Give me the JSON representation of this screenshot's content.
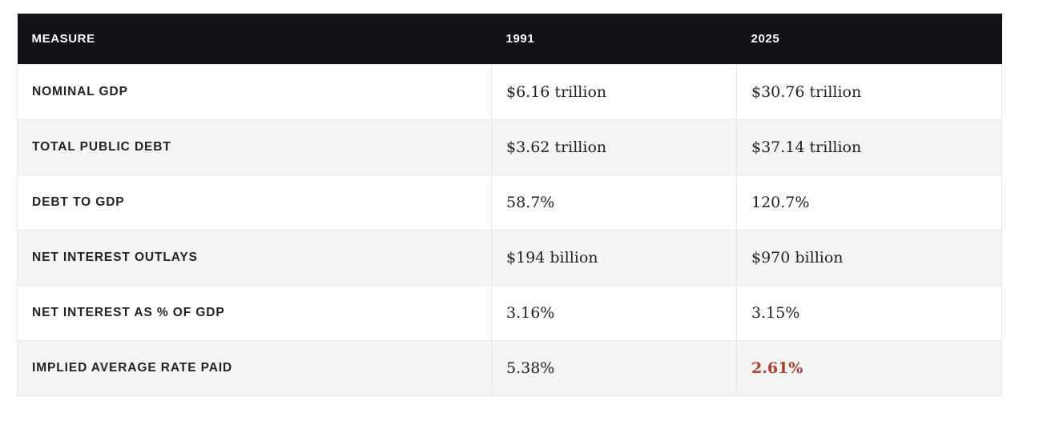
{
  "table": {
    "headers": [
      "MEASURE",
      "1991",
      "2025"
    ],
    "rows": [
      {
        "measure": "NOMINAL GDP",
        "y1991": "$6.16 trillion",
        "y2025": "$30.76 trillion"
      },
      {
        "measure": "TOTAL PUBLIC DEBT",
        "y1991": "$3.62 trillion",
        "y2025": "$37.14 trillion"
      },
      {
        "measure": "DEBT TO GDP",
        "y1991": "58.7%",
        "y2025": "120.7%"
      },
      {
        "measure": "NET INTEREST OUTLAYS",
        "y1991": "$194 billion",
        "y2025": "$970 billion"
      },
      {
        "measure": "NET INTEREST AS % OF GDP",
        "y1991": "3.16%",
        "y2025": "3.15%"
      },
      {
        "measure": "IMPLIED AVERAGE RATE PAID",
        "y1991": "5.38%",
        "y2025": "2.61%"
      }
    ],
    "colors": {
      "header_bg": "#111316",
      "highlight": "#a8402e"
    }
  }
}
